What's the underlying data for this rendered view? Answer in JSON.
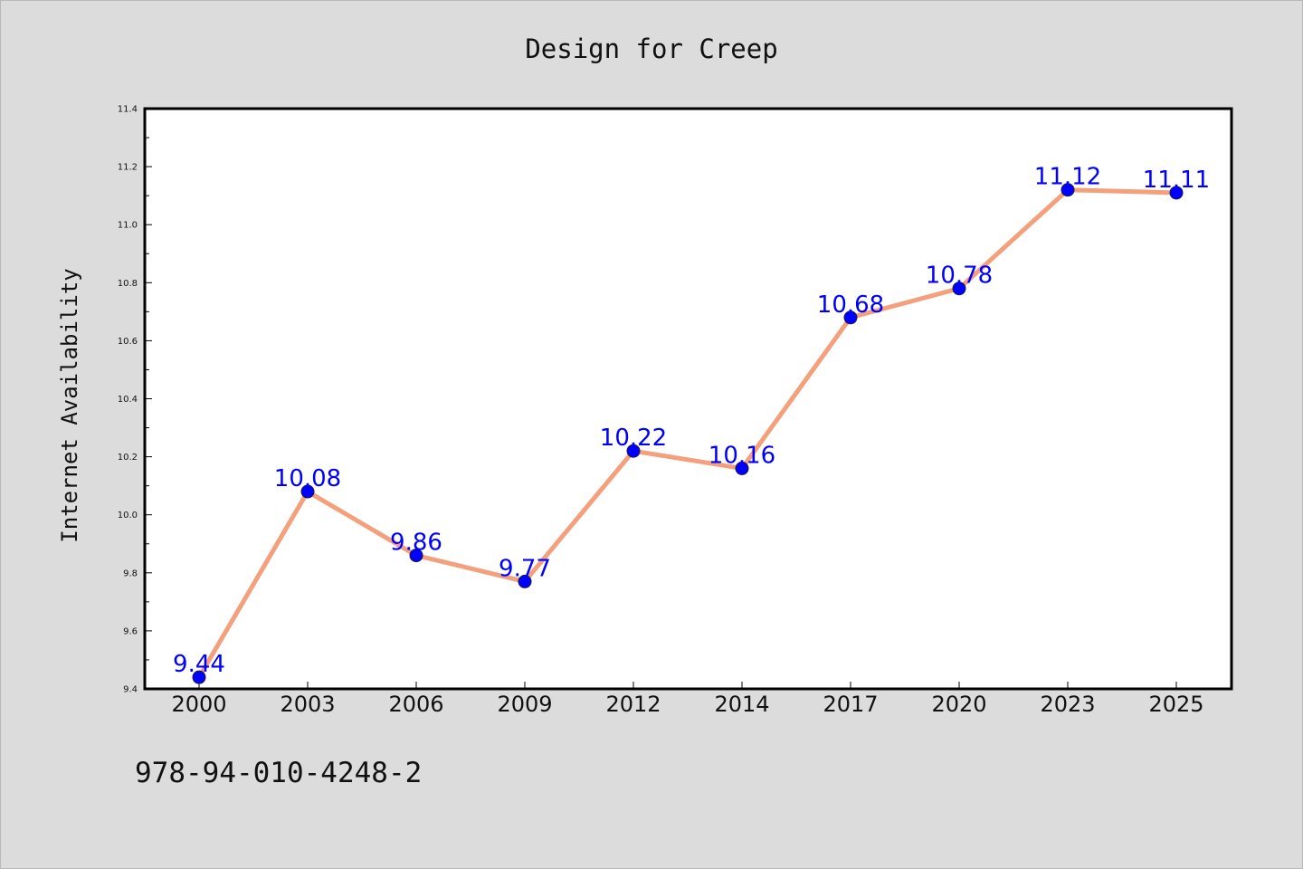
{
  "chart_data": {
    "type": "line",
    "title": "Design for Creep",
    "xlabel": "",
    "ylabel": "Internet Availability",
    "categories": [
      "2000",
      "2003",
      "2006",
      "2009",
      "2012",
      "2014",
      "2017",
      "2020",
      "2023",
      "2025"
    ],
    "series": [
      {
        "values": [
          9.44,
          10.08,
          9.86,
          9.77,
          10.22,
          10.16,
          10.68,
          10.78,
          11.12,
          11.11
        ]
      }
    ],
    "data_labels": [
      "9.44",
      "10.08",
      "9.86",
      "9.77",
      "10.22",
      "10.16",
      "10.68",
      "10.78",
      "11.12",
      "11.11"
    ],
    "ylim": [
      9.4,
      11.4
    ],
    "yticks": [
      "9.4",
      "9.6",
      "9.8",
      "10.0",
      "10.2",
      "10.4",
      "10.6",
      "10.8",
      "11.0",
      "11.2",
      "11.4"
    ],
    "grid": false,
    "legend": "none",
    "colors": {
      "line": "#f4a07c",
      "marker": "#0000ff",
      "marker_edge": "#1a1a4a",
      "data_label": "#0000ff",
      "background": "#dcdcdc",
      "plot_area": "#ffffff"
    }
  },
  "footnote": "978-94-010-4248-2"
}
